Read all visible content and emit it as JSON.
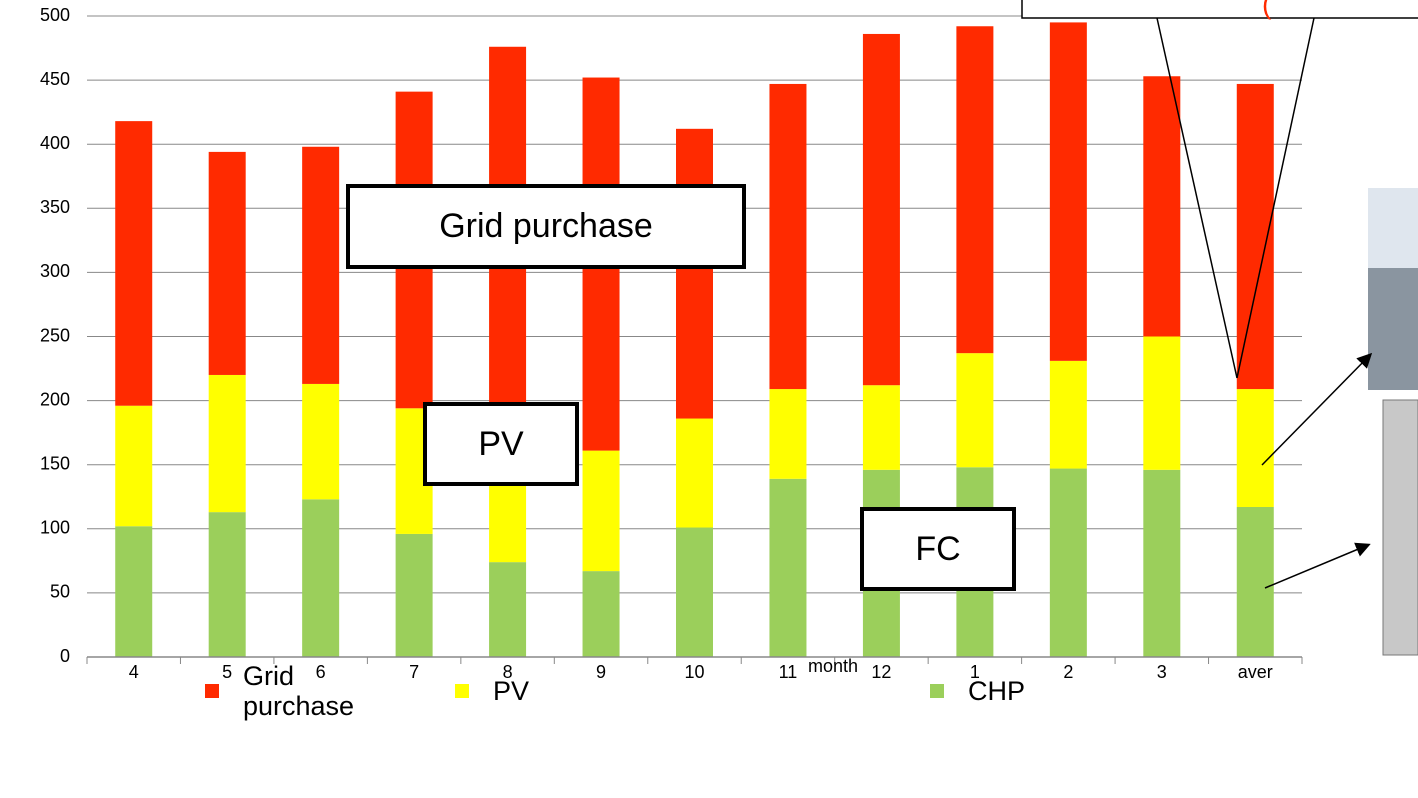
{
  "chart_data": {
    "type": "stacked_bar",
    "categories": [
      "4",
      "5",
      "6",
      "7",
      "8",
      "9",
      "10",
      "11",
      "12",
      "1",
      "2",
      "3",
      "aver"
    ],
    "series": [
      {
        "name": "Grid purchase",
        "color": "#ff2a00",
        "values": [
          222,
          174,
          185,
          247,
          282,
          291,
          226,
          238,
          274,
          255,
          264,
          203,
          238
        ]
      },
      {
        "name": "PV",
        "color": "#ffff00",
        "values": [
          94,
          107,
          90,
          98,
          120,
          94,
          85,
          70,
          66,
          89,
          84,
          104,
          92
        ]
      },
      {
        "name": "CHP",
        "color": "#9bcf5b",
        "values": [
          102,
          113,
          123,
          96,
          74,
          67,
          101,
          139,
          146,
          148,
          147,
          146,
          117
        ]
      }
    ],
    "ylim": [
      0,
      500
    ],
    "yticks": [
      0,
      50,
      100,
      150,
      200,
      250,
      300,
      350,
      400,
      450,
      500
    ],
    "grid": true,
    "x_label": "month",
    "annotations": [
      "Grid purchase",
      "PV",
      "FC",
      "("
    ]
  }
}
